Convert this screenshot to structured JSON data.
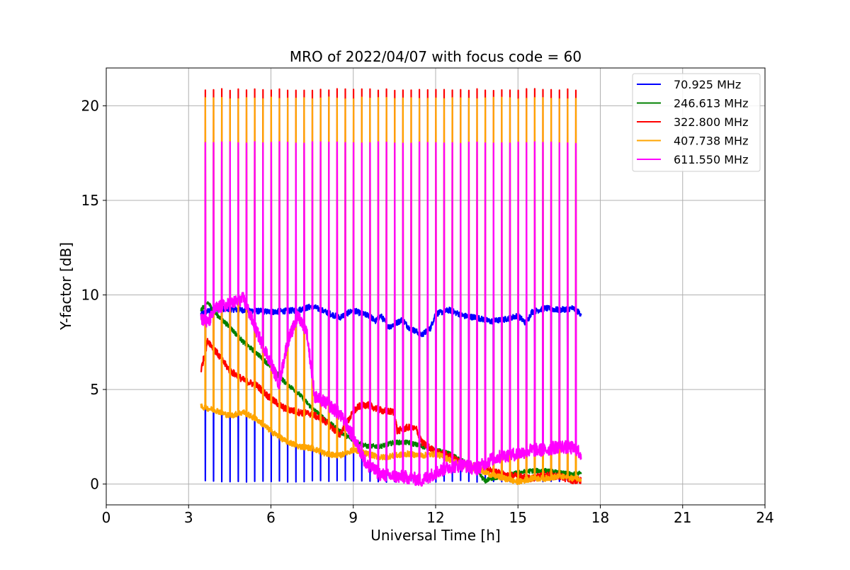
{
  "chart_data": {
    "type": "line",
    "title": "MRO of 2022/04/07 with focus code = 60",
    "xlabel": "Universal Time [h]",
    "ylabel": "Y-factor [dB]",
    "xlim": [
      0,
      24
    ],
    "ylim": [
      -1.1,
      22
    ],
    "x_ticks": [
      0,
      3,
      6,
      9,
      12,
      15,
      18,
      21,
      24
    ],
    "x_tick_labels": [
      "0",
      "3",
      "6",
      "9",
      "12",
      "15",
      "18",
      "21",
      "24"
    ],
    "y_ticks": [
      0,
      5,
      10,
      15,
      20
    ],
    "y_tick_labels": [
      "0",
      "5",
      "10",
      "15",
      "20"
    ],
    "grid": true,
    "legend_position": "top-right",
    "x_range": [
      3.45,
      17.3
    ],
    "spike_interval_h": 0.3,
    "series": [
      {
        "name": " 70.925 MHz",
        "color": "#0000ff",
        "baseline_x": [
          3.45,
          4.0,
          5.0,
          6.0,
          7.0,
          7.5,
          8.0,
          8.5,
          9.0,
          9.3,
          9.6,
          9.8,
          10.0,
          10.3,
          10.8,
          11.0,
          11.5,
          11.8,
          12.0,
          12.5,
          13.0,
          13.5,
          14.0,
          14.5,
          15.0,
          15.3,
          15.5,
          16.0,
          16.5,
          17.0,
          17.3
        ],
        "baseline_y": [
          9.0,
          9.3,
          9.2,
          9.1,
          9.2,
          9.4,
          9.1,
          8.8,
          9.2,
          9.0,
          8.9,
          8.6,
          8.9,
          8.3,
          8.7,
          8.3,
          7.9,
          8.2,
          9.0,
          9.2,
          8.9,
          8.8,
          8.6,
          8.7,
          8.9,
          8.5,
          9.1,
          9.3,
          9.2,
          9.3,
          9.0
        ],
        "spike_peak": 0.15,
        "spike_until": 17.0
      },
      {
        "name": "246.613 MHz",
        "color": "#008000",
        "baseline_x": [
          3.45,
          3.7,
          4.0,
          4.5,
          5.0,
          5.5,
          6.0,
          6.5,
          7.0,
          7.5,
          8.0,
          8.5,
          9.0,
          9.5,
          10.0,
          10.5,
          11.0,
          11.5,
          12.0,
          12.5,
          13.0,
          13.5,
          13.8,
          14.0,
          14.5,
          15.0,
          15.5,
          16.0,
          16.5,
          17.0,
          17.3
        ],
        "baseline_y": [
          9.2,
          9.6,
          9.0,
          8.3,
          7.5,
          6.9,
          6.2,
          5.4,
          4.8,
          4.0,
          3.4,
          2.8,
          2.3,
          2.0,
          2.0,
          2.2,
          2.2,
          2.0,
          1.8,
          1.6,
          1.2,
          0.7,
          0.15,
          0.3,
          0.4,
          0.6,
          0.7,
          0.7,
          0.6,
          0.5,
          0.6
        ],
        "spike_peak": null,
        "spike_until": null
      },
      {
        "name": "322.800 MHz",
        "color": "#ff0000",
        "baseline_x": [
          3.45,
          3.7,
          4.0,
          4.5,
          5.0,
          5.5,
          6.0,
          6.5,
          7.0,
          7.5,
          8.0,
          8.5,
          9.0,
          9.2,
          9.5,
          10.0,
          10.5,
          10.6,
          11.0,
          11.3,
          11.5,
          12.0,
          12.5,
          13.0,
          13.5,
          14.0,
          14.5,
          15.0,
          15.5,
          16.0,
          16.5,
          17.0,
          17.3
        ],
        "baseline_y": [
          6.0,
          7.6,
          7.0,
          6.0,
          5.5,
          5.2,
          4.5,
          4.0,
          3.8,
          3.7,
          3.3,
          2.6,
          3.8,
          4.1,
          4.2,
          3.9,
          3.8,
          2.8,
          3.0,
          2.9,
          2.2,
          1.7,
          1.5,
          1.1,
          0.9,
          0.7,
          0.5,
          0.4,
          0.3,
          0.5,
          0.4,
          0.2,
          0.2
        ],
        "spike_peak": 20.85,
        "spike_until": 17.3
      },
      {
        "name": "407.738 MHz",
        "color": "#ffa500",
        "baseline_x": [
          3.45,
          3.7,
          4.0,
          4.5,
          5.0,
          5.5,
          6.0,
          6.5,
          7.0,
          7.5,
          8.0,
          8.5,
          9.0,
          9.5,
          10.0,
          10.5,
          11.0,
          11.5,
          12.0,
          12.5,
          13.0,
          13.5,
          14.0,
          14.5,
          15.0,
          15.5,
          16.0,
          16.5,
          17.0,
          17.3
        ],
        "baseline_y": [
          4.1,
          4.0,
          3.9,
          3.6,
          3.8,
          3.4,
          2.8,
          2.3,
          2.0,
          1.9,
          1.6,
          1.5,
          1.8,
          1.6,
          1.4,
          1.5,
          1.6,
          1.5,
          1.6,
          1.3,
          1.0,
          0.8,
          0.5,
          0.3,
          0.1,
          0.3,
          0.3,
          0.4,
          0.3,
          0.3
        ],
        "spike_peak": 20.4,
        "spike_until": 17.3
      },
      {
        "name": "611.550 MHz",
        "color": "#ff00ff",
        "baseline_x": [
          3.45,
          3.7,
          4.0,
          4.5,
          5.0,
          5.5,
          6.0,
          6.3,
          6.6,
          7.0,
          7.3,
          7.6,
          8.0,
          8.5,
          9.0,
          9.5,
          10.0,
          10.5,
          11.0,
          11.5,
          12.0,
          12.5,
          13.0,
          13.5,
          14.0,
          14.5,
          15.0,
          15.5,
          16.0,
          16.5,
          17.0,
          17.3
        ],
        "baseline_y": [
          8.8,
          8.5,
          9.3,
          9.5,
          9.8,
          8.0,
          6.4,
          5.3,
          7.5,
          8.9,
          8.1,
          4.6,
          4.3,
          3.7,
          2.5,
          1.0,
          0.5,
          0.4,
          0.35,
          0.2,
          0.6,
          0.9,
          1.0,
          0.8,
          1.3,
          1.5,
          1.6,
          1.8,
          1.8,
          2.0,
          1.9,
          1.6
        ],
        "spike_peak": 18.05,
        "spike_until": 17.3
      }
    ]
  }
}
